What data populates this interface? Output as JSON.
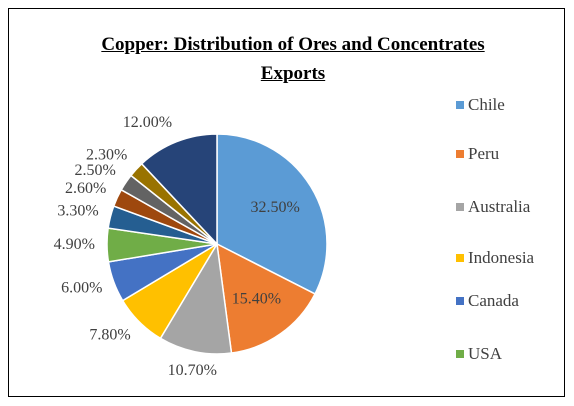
{
  "chart_data": {
    "type": "pie",
    "title": "Copper: Distribution of Ores and Concentrates Exports",
    "categories": [
      "Chile",
      "Peru",
      "Australia",
      "Indonesia",
      "Canada",
      "USA",
      null,
      null,
      null,
      null,
      null
    ],
    "values": [
      32.5,
      15.4,
      10.7,
      7.8,
      6.0,
      4.9,
      3.3,
      2.6,
      2.5,
      2.3,
      12.0
    ],
    "value_labels": [
      "32.50%",
      "15.40%",
      "10.70%",
      "7.80%",
      "6.00%",
      "4.90%",
      "3.30%",
      "2.60%",
      "2.50%",
      "2.30%",
      "12.00%"
    ],
    "colors": [
      "#5b9bd5",
      "#ed7d31",
      "#a5a5a5",
      "#ffc000",
      "#4472c4",
      "#70ad47",
      "#255e91",
      "#9e480e",
      "#636363",
      "#997300",
      "#264478"
    ],
    "legend": "right"
  }
}
